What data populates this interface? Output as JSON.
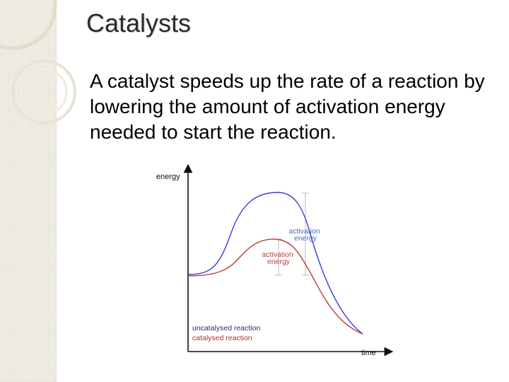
{
  "slide": {
    "title": "Catalysts",
    "body": "A catalyst speeds up the rate of a reaction by lowering the amount of activation energy needed to start the reaction."
  },
  "diagram": {
    "y_axis_label": "energy",
    "x_axis_label": "time",
    "uncatalysed_activation_label": [
      "activation",
      "energy"
    ],
    "catalysed_activation_label": [
      "activation",
      "energy"
    ],
    "legend": {
      "uncatalysed": "uncatalysed reaction",
      "catalysed": "catalysed reaction"
    },
    "colors": {
      "uncatalysed": "#3b3bd8",
      "catalysed": "#c03a3a",
      "axis": "#111111",
      "bracket": "#b8b8b8",
      "activation_label": "#3a6fc7"
    }
  }
}
